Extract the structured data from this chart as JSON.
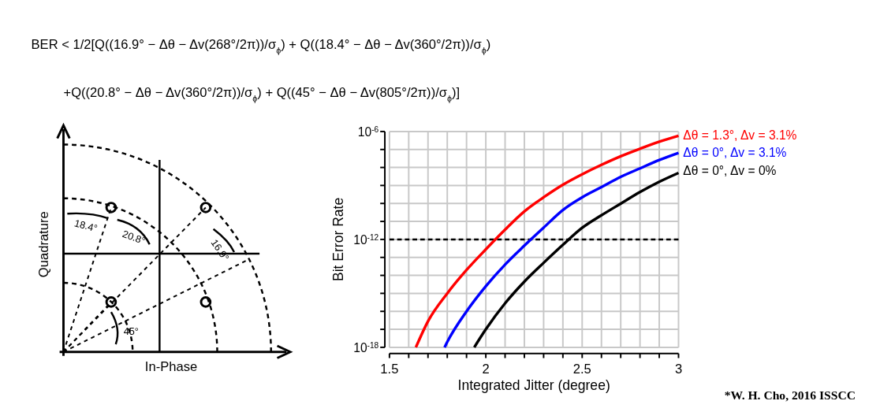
{
  "chart_data": {
    "type": "line",
    "xlabel": "Integrated Jitter (degree)",
    "ylabel": "Bit Error Rate",
    "log": "y",
    "grid": true,
    "legend": "top right",
    "xlim": [
      1.5,
      3
    ],
    "ylim": [
      1e-18,
      1e-06
    ],
    "xticks": [
      1.5,
      {
        "value": 1.6,
        "label": null
      },
      {
        "value": 1.7,
        "label": null
      },
      {
        "value": 1.8,
        "label": null
      },
      {
        "value": 1.9,
        "label": null
      },
      2,
      {
        "value": 2.1,
        "label": null
      },
      {
        "value": 2.2,
        "label": null
      },
      {
        "value": 2.3,
        "label": null
      },
      {
        "value": 2.4,
        "label": null
      },
      2.5,
      {
        "value": 2.6,
        "label": null
      },
      {
        "value": 2.7,
        "label": null
      },
      {
        "value": 2.8,
        "label": null
      },
      {
        "value": 2.9,
        "label": null
      },
      3
    ],
    "yticks": [
      {
        "value": 1e-18,
        "label": "10$^{-18}$"
      },
      {
        "value": 1e-17,
        "label": null
      },
      {
        "value": 1e-16,
        "label": null
      },
      {
        "value": 1e-15,
        "label": null
      },
      {
        "value": 1e-14,
        "label": null
      },
      {
        "value": 1e-13,
        "label": null
      },
      {
        "value": 1e-12,
        "label": "10$^{-12}$"
      },
      {
        "value": 1e-11,
        "label": null
      },
      {
        "value": 1e-10,
        "label": null
      },
      {
        "value": 1e-09,
        "label": null
      },
      {
        "value": 1e-08,
        "label": null
      },
      {
        "value": 1e-07,
        "label": null
      },
      {
        "value": 1e-06,
        "label": "10$^{-6}$"
      }
    ],
    "series": [
      {
        "name": "Δθ = 1.3°, Δv = 3.1%",
        "color": "#ff0000",
        "x": [
          1.637,
          1.7,
          1.8,
          1.9,
          2.0,
          2.1,
          2.2,
          2.3,
          2.4,
          2.5,
          2.6,
          2.7,
          2.8,
          2.9,
          3.0
        ],
        "values": [
          1e-18,
          2.8e-17,
          1e-15,
          2e-14,
          2.8e-13,
          3.5e-12,
          3.6e-11,
          2.2e-10,
          1.1e-09,
          4.2e-09,
          1.4e-08,
          4.2e-08,
          1.1e-07,
          2.7e-07,
          5.8e-07
        ]
      },
      {
        "name": "Δθ = 0°, Δv = 3.1%",
        "color": "#0000ff",
        "x": [
          1.786,
          1.8,
          1.9,
          2.0,
          2.1,
          2.2,
          2.3,
          2.4,
          2.5,
          2.6,
          2.7,
          2.8,
          2.9,
          3.0
        ],
        "values": [
          1e-18,
          2e-18,
          1e-16,
          2.5e-15,
          4e-14,
          4.5e-13,
          4.5e-12,
          4.3e-11,
          2.2e-10,
          8.1e-10,
          3e-09,
          8.9e-09,
          2.6e-08,
          6.5e-08
        ]
      },
      {
        "name": "Δθ = 0°, Δv = 0%",
        "color": "#000000",
        "x": [
          1.94,
          2.0,
          2.1,
          2.2,
          2.3,
          2.4,
          2.5,
          2.6,
          2.7,
          2.8,
          2.9,
          3.0
        ],
        "values": [
          1e-18,
          1e-17,
          2.8e-16,
          4.5e-15,
          5e-14,
          5e-13,
          4.4e-12,
          2.2e-11,
          9.8e-11,
          4.3e-10,
          1.6e-09,
          5e-09
        ]
      }
    ],
    "ref_lines": [
      {
        "axis": "y",
        "value": 1e-12,
        "color": "#000000",
        "line_style": "dashed"
      }
    ],
    "annotations": [
      "BER < 1/2[Q((16.9° − Δθ − Δv(268°/2π))/σ$_{ϕ}$) + Q((18.4° − Δθ − Δv(360°/2π))/σ$_{ϕ}$)",
      "+Q((20.8° − Δθ − Δv(360°/2π))/σ$_{ϕ}$) + Q((45° − Δθ − Δv(805°/2π))/σ$_{ϕ}$)]",
      "Quadrature",
      "In-Phase",
      "18.4°",
      "20.8°",
      "16.9°",
      "45°",
      "*W. H. Cho, 2016 ISSCC"
    ]
  }
}
